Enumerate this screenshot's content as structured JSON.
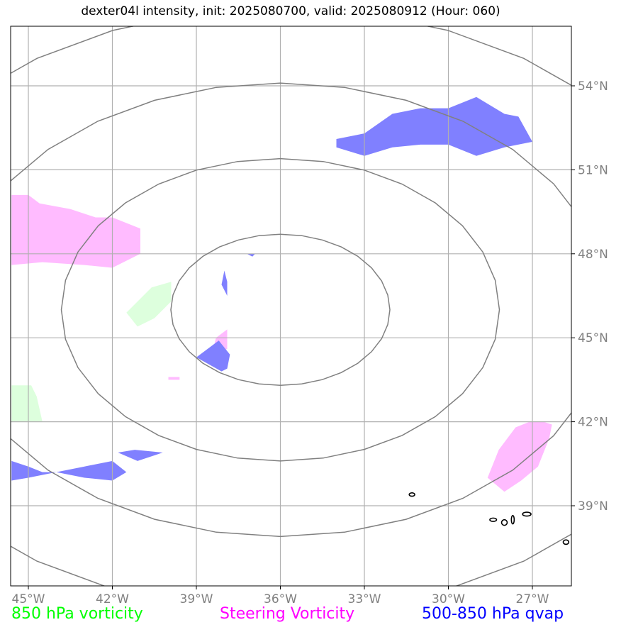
{
  "title": "dexter04l intensity, init: 2025080700, valid: 2025080912 (Hour: 060)",
  "legend": [
    {
      "label": "850 hPa vorticity",
      "color": "#00ff00"
    },
    {
      "label": "Steering Vorticity",
      "color": "#ff00ff"
    },
    {
      "label": "500-850 hPa qvap",
      "color": "#0000ff"
    }
  ],
  "chart_data": {
    "type": "map",
    "xaxis": {
      "ticks": [
        -45,
        -42,
        -39,
        -36,
        -33,
        -30,
        -27
      ],
      "tick_labels": [
        "45°W",
        "42°W",
        "39°W",
        "36°W",
        "33°W",
        "30°W",
        "27°W"
      ],
      "range": [
        -45.6,
        -25.6
      ]
    },
    "yaxis": {
      "ticks": [
        54,
        51,
        48,
        45,
        42,
        39
      ],
      "tick_labels": [
        "54°N",
        "51°N",
        "48°N",
        "45°N",
        "42°N",
        "39°N"
      ],
      "range": [
        36.3,
        56.4
      ]
    },
    "grid": true,
    "range_rings_center": [
      -36.0,
      46.0
    ],
    "range_rings_radii_deg_lat": [
      2.7,
      5.4,
      8.1,
      10.8
    ],
    "series": [
      {
        "name": "850 hPa vorticity",
        "color": "#ddffdd",
        "polygons": [
          [
            [
              -41.5,
              45.9
            ],
            [
              -40.6,
              46.8
            ],
            [
              -39.9,
              47.0
            ],
            [
              -39.9,
              46.3
            ],
            [
              -40.5,
              45.7
            ],
            [
              -41.1,
              45.4
            ]
          ],
          [
            [
              -45.6,
              43.3
            ],
            [
              -44.9,
              43.3
            ],
            [
              -44.7,
              42.9
            ],
            [
              -44.5,
              42.0
            ],
            [
              -45.6,
              42.0
            ]
          ]
        ]
      },
      {
        "name": "Steering Vorticity",
        "color": "#ffbbff",
        "polygons": [
          [
            [
              -45.6,
              50.1
            ],
            [
              -45.0,
              50.1
            ],
            [
              -44.6,
              49.8
            ],
            [
              -43.5,
              49.6
            ],
            [
              -42.6,
              49.3
            ],
            [
              -42.0,
              49.3
            ],
            [
              -41.0,
              48.9
            ],
            [
              -41.0,
              48.0
            ],
            [
              -42.0,
              47.5
            ],
            [
              -43.0,
              47.6
            ],
            [
              -44.5,
              47.7
            ],
            [
              -45.6,
              47.6
            ]
          ],
          [
            [
              -38.3,
              45.0
            ],
            [
              -37.9,
              45.3
            ],
            [
              -37.9,
              44.6
            ],
            [
              -38.2,
              44.5
            ],
            [
              -38.4,
              44.6
            ]
          ],
          [
            [
              -28.6,
              40.0
            ],
            [
              -28.2,
              41.0
            ],
            [
              -27.6,
              41.8
            ],
            [
              -27.1,
              42.0
            ],
            [
              -26.6,
              42.0
            ],
            [
              -26.3,
              41.9
            ],
            [
              -26.4,
              41.4
            ],
            [
              -26.8,
              40.4
            ],
            [
              -27.4,
              39.9
            ],
            [
              -28.0,
              39.5
            ]
          ],
          [
            [
              -40.0,
              43.5
            ],
            [
              -39.6,
              43.5
            ],
            [
              -39.6,
              43.6
            ],
            [
              -40.0,
              43.6
            ]
          ]
        ]
      },
      {
        "name": "500-850 hPa qvap",
        "color": "#8080ff",
        "polygons": [
          [
            [
              -34.0,
              52.1
            ],
            [
              -33.0,
              52.3
            ],
            [
              -32.0,
              53.0
            ],
            [
              -31.0,
              53.2
            ],
            [
              -30.0,
              53.2
            ],
            [
              -29.0,
              53.6
            ],
            [
              -28.0,
              53.0
            ],
            [
              -27.5,
              52.9
            ],
            [
              -27.0,
              52.0
            ],
            [
              -28.0,
              51.8
            ],
            [
              -29.0,
              51.5
            ],
            [
              -30.0,
              51.9
            ],
            [
              -31.0,
              51.9
            ],
            [
              -32.0,
              51.8
            ],
            [
              -33.0,
              51.5
            ],
            [
              -34.0,
              51.8
            ]
          ],
          [
            [
              -38.0,
              47.4
            ],
            [
              -37.9,
              47.0
            ],
            [
              -37.9,
              46.5
            ],
            [
              -38.1,
              46.9
            ]
          ],
          [
            [
              -37.2,
              48.0
            ],
            [
              -37.0,
              47.9
            ],
            [
              -36.9,
              48.0
            ],
            [
              -37.2,
              48.0
            ]
          ],
          [
            [
              -39.0,
              44.3
            ],
            [
              -38.2,
              44.9
            ],
            [
              -37.8,
              44.4
            ],
            [
              -37.9,
              43.9
            ],
            [
              -38.1,
              43.8
            ]
          ],
          [
            [
              -41.8,
              40.9
            ],
            [
              -41.2,
              41.0
            ],
            [
              -40.2,
              40.9
            ],
            [
              -40.5,
              40.8
            ],
            [
              -41.1,
              40.6
            ]
          ],
          [
            [
              -45.6,
              40.6
            ],
            [
              -45.0,
              40.4
            ],
            [
              -44.5,
              40.2
            ],
            [
              -44.0,
              40.2
            ],
            [
              -43.0,
              40.4
            ],
            [
              -42.0,
              40.6
            ],
            [
              -41.5,
              40.2
            ],
            [
              -42.0,
              39.9
            ],
            [
              -43.0,
              40.0
            ],
            [
              -44.0,
              40.2
            ],
            [
              -45.0,
              40.0
            ],
            [
              -45.6,
              39.9
            ]
          ]
        ]
      }
    ],
    "contours": [
      {
        "color": "#000000",
        "type": "ellipse",
        "center": [
          -31.3,
          39.4
        ],
        "r": [
          0.1,
          0.06
        ]
      },
      {
        "color": "#000000",
        "type": "ellipse",
        "center": [
          -28.4,
          38.5
        ],
        "r": [
          0.12,
          0.06
        ]
      },
      {
        "color": "#000000",
        "type": "ellipse",
        "center": [
          -28.0,
          38.4
        ],
        "r": [
          0.1,
          0.1
        ]
      },
      {
        "color": "#000000",
        "type": "ellipse",
        "center": [
          -27.7,
          38.5
        ],
        "r": [
          0.05,
          0.15
        ]
      },
      {
        "color": "#000000",
        "type": "ellipse",
        "center": [
          -27.2,
          38.7
        ],
        "r": [
          0.15,
          0.07
        ]
      },
      {
        "color": "#000000",
        "type": "ellipse",
        "center": [
          -25.8,
          37.7
        ],
        "r": [
          0.1,
          0.08
        ]
      }
    ]
  }
}
